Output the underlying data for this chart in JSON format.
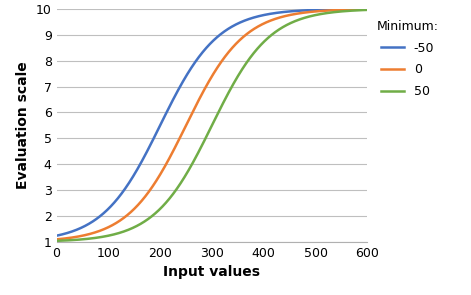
{
  "title": "",
  "xlabel": "Input values",
  "ylabel": "Evaluation scale",
  "legend_title": "Minimum:",
  "series": [
    {
      "label": "-50",
      "color": "#4472C4",
      "minimum": -50,
      "midpoint": 200
    },
    {
      "label": "0",
      "color": "#ED7D31",
      "minimum": 0,
      "midpoint": 250
    },
    {
      "label": "50",
      "color": "#70AD47",
      "minimum": 50,
      "midpoint": 300
    }
  ],
  "x_min": 0,
  "x_max": 600,
  "x_ticks": [
    0,
    100,
    200,
    300,
    400,
    500,
    600
  ],
  "y_min": 1,
  "y_max": 10,
  "y_ticks": [
    1,
    2,
    3,
    4,
    5,
    6,
    7,
    8,
    9,
    10
  ],
  "scale_min": 1,
  "scale_max": 10,
  "logistic_rate": 0.018,
  "background_color": "#ffffff",
  "grid_color": "#bfbfbf",
  "linewidth": 1.8,
  "xlabel_fontsize": 10,
  "ylabel_fontsize": 10,
  "tick_labelsize": 9,
  "legend_title_fontsize": 9,
  "legend_fontsize": 9
}
